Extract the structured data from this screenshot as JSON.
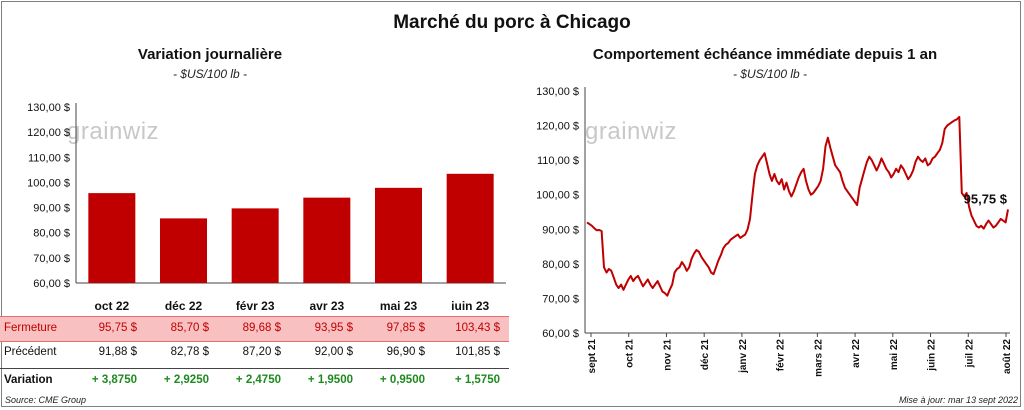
{
  "title": "Marché du porc à Chicago",
  "watermark": "grainwiz",
  "left": {
    "title": "Variation  journalière",
    "unit": "- $US/100 lb -"
  },
  "right": {
    "title": "Comportement  échéance immédiate depuis 1 an",
    "unit": "- $US/100 lb -",
    "last_label": "95,75 $"
  },
  "table": {
    "row_labels": [
      "Fermeture",
      "Précédent",
      "Variation"
    ],
    "close": [
      "95,75  $",
      "85,70  $",
      "89,68  $",
      "93,95  $",
      "97,85  $",
      "103,43  $"
    ],
    "prev": [
      "91,88  $",
      "82,78  $",
      "87,20  $",
      "92,00  $",
      "96,90  $",
      "101,85  $"
    ],
    "var": [
      "+ 3,8750",
      "+ 2,9250",
      "+ 2,4750",
      "+ 1,9500",
      "+ 0,9500",
      "+ 1,5750"
    ]
  },
  "source": "Source: CME Group",
  "updated": "Mise à jour: mar 13 sept 2022",
  "colors": {
    "bar": "#c00000",
    "line": "#c00000",
    "up": "#1e8a1e"
  },
  "chart_data": [
    {
      "type": "bar",
      "categories": [
        "oct 22",
        "déc 22",
        "févr 23",
        "avr 23",
        "mai 23",
        "juin 23"
      ],
      "values": [
        95.75,
        85.7,
        89.68,
        93.95,
        97.85,
        103.43
      ],
      "ylim": [
        60,
        130
      ],
      "yticks": [
        "60,00 $",
        "70,00 $",
        "80,00 $",
        "90,00 $",
        "100,00 $",
        "110,00 $",
        "120,00 $",
        "130,00 $"
      ],
      "grid": false
    },
    {
      "type": "line",
      "ylim": [
        60,
        130
      ],
      "yticks": [
        "60,00 $",
        "70,00 $",
        "80,00 $",
        "90,00 $",
        "100,00 $",
        "110,00 $",
        "120,00 $",
        "130,00 $"
      ],
      "xticks": [
        "sept 21",
        "oct 21",
        "nov 21",
        "déc 21",
        "janv 22",
        "févr 22",
        "mars 22",
        "avr 22",
        "mai 22",
        "juin 22",
        "juil 22",
        "août 22"
      ],
      "series": [
        {
          "values": [
            92.0,
            91.5,
            91.0,
            90.3,
            89.7,
            89.8,
            89.5,
            79.0,
            77.5,
            78.5,
            78.0,
            76.0,
            74.0,
            73.0,
            74.0,
            72.5,
            74.0,
            75.5,
            76.5,
            75.0,
            76.0,
            76.5,
            75.0,
            73.5,
            74.5,
            75.5,
            74.0,
            73.0,
            74.0,
            75.0,
            73.5,
            72.0,
            71.5,
            70.8,
            72.5,
            74.0,
            77.5,
            78.5,
            79.0,
            80.5,
            79.5,
            78.0,
            79.0,
            81.5,
            83.0,
            84.0,
            83.5,
            82.0,
            81.0,
            80.0,
            79.0,
            77.5,
            77.0,
            79.0,
            81.0,
            82.5,
            84.5,
            85.5,
            86.0,
            87.0,
            87.5,
            88.0,
            88.5,
            87.5,
            88.0,
            88.5,
            90.0,
            93.0,
            100.0,
            106.0,
            108.5,
            110.0,
            111.0,
            112.0,
            109.0,
            106.0,
            104.0,
            106.0,
            104.0,
            103.0,
            104.5,
            101.5,
            103.5,
            101.0,
            99.5,
            101.0,
            103.0,
            105.0,
            106.5,
            107.5,
            104.0,
            101.5,
            100.0,
            100.5,
            101.5,
            102.5,
            104.0,
            107.5,
            114.0,
            116.5,
            113.5,
            111.0,
            108.5,
            107.5,
            106.5,
            104.0,
            102.0,
            101.0,
            100.0,
            99.0,
            98.0,
            97.0,
            102.0,
            104.5,
            107.0,
            109.5,
            111.0,
            110.0,
            108.5,
            107.0,
            108.5,
            110.5,
            109.0,
            107.5,
            106.5,
            105.0,
            106.0,
            107.5,
            106.5,
            108.5,
            107.5,
            106.0,
            104.5,
            105.5,
            107.0,
            109.5,
            111.0,
            110.0,
            109.5,
            110.5,
            108.5,
            109.0,
            110.5,
            111.0,
            112.0,
            113.0,
            115.0,
            119.0,
            120.0,
            120.5,
            121.0,
            121.5,
            121.8,
            122.5,
            100.5,
            99.5,
            100.5,
            96.5,
            94.0,
            92.5,
            91.0,
            90.5,
            91.0,
            90.2,
            91.5,
            92.5,
            91.5,
            90.5,
            91.0,
            92.0,
            93.0,
            92.5,
            92.0,
            95.75
          ]
        }
      ]
    }
  ]
}
